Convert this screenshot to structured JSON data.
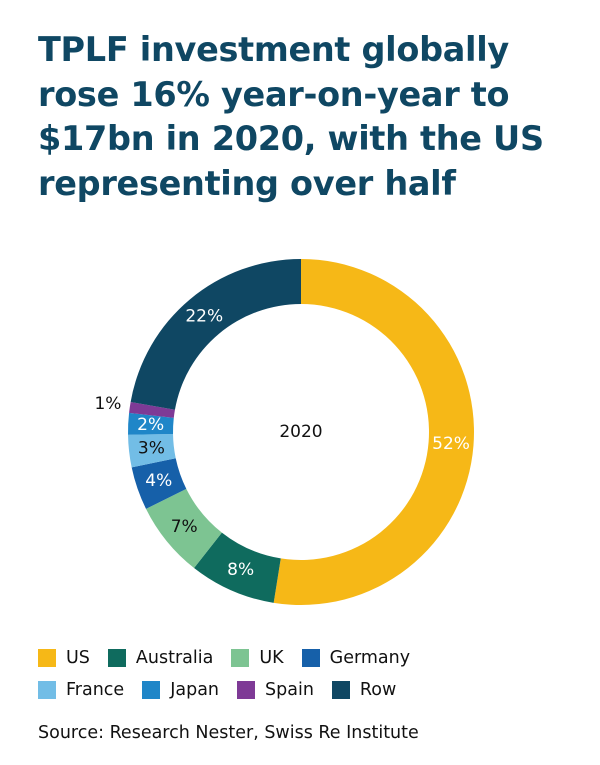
{
  "title": "TPLF investment globally rose 16% year-on-year to $17bn in 2020, with the US representing over half",
  "source": "Source: Research Nester, Swiss Re Institute",
  "chart_data": {
    "type": "pie",
    "center_label": "2020",
    "slices": [
      {
        "label": "US",
        "value": 52,
        "display": "52%",
        "color": "#f6b817",
        "label_color": "#ffffff"
      },
      {
        "label": "Australia",
        "value": 8,
        "display": "8%",
        "color": "#0f6b5e",
        "label_color": "#ffffff"
      },
      {
        "label": "UK",
        "value": 7,
        "display": "7%",
        "color": "#7dc492",
        "label_color": "#111111"
      },
      {
        "label": "Germany",
        "value": 4,
        "display": "4%",
        "color": "#1660a9",
        "label_color": "#ffffff"
      },
      {
        "label": "France",
        "value": 3,
        "display": "3%",
        "color": "#72bde6",
        "label_color": "#111111"
      },
      {
        "label": "Japan",
        "value": 2,
        "display": "2%",
        "color": "#1f86c8",
        "label_color": "#ffffff"
      },
      {
        "label": "Spain",
        "value": 1,
        "display": "1%",
        "color": "#7e3a96",
        "label_color": "#111111"
      },
      {
        "label": "Row",
        "value": 22,
        "display": "22%",
        "color": "#0f4763",
        "label_color": "#ffffff"
      }
    ],
    "legend_rows": [
      [
        "US",
        "Australia",
        "UK",
        "Germany"
      ],
      [
        "France",
        "Japan",
        "Spain",
        "Row"
      ]
    ]
  }
}
